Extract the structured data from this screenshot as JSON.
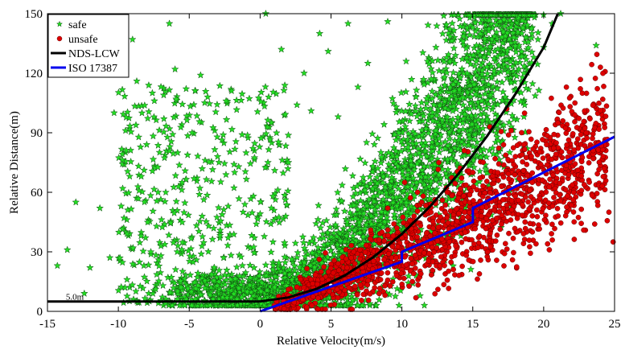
{
  "chart_data": {
    "type": "scatter",
    "title": "",
    "xlabel": "Relative Velocity(m/s)",
    "ylabel": "Relative Distance(m)",
    "xlim": [
      -15,
      25
    ],
    "ylim": [
      0,
      150
    ],
    "xticks": [
      -15,
      -10,
      -5,
      0,
      5,
      10,
      15,
      20,
      25
    ],
    "yticks": [
      0,
      30,
      60,
      90,
      120,
      150
    ],
    "grid": false,
    "legend_position": "top-left",
    "annotations": [
      {
        "text": "5.0m",
        "x": -13.7,
        "y": 5.8
      }
    ],
    "series": [
      {
        "name": "safe",
        "kind": "scatter",
        "marker": "star",
        "color": "#22dd22",
        "points_sample": [
          [
            -14.3,
            23
          ],
          [
            -13.6,
            31
          ],
          [
            -13,
            55
          ],
          [
            -12.4,
            9
          ],
          [
            -12,
            22
          ],
          [
            -11.3,
            52
          ],
          [
            -10.6,
            27
          ],
          [
            -10.3,
            100
          ],
          [
            -10.1,
            134
          ],
          [
            -9.8,
            140
          ],
          [
            -9.6,
            47
          ],
          [
            -9.2,
            68
          ],
          [
            -9,
            137
          ],
          [
            -8.7,
            116
          ],
          [
            -8.4,
            38
          ],
          [
            -8.2,
            23
          ],
          [
            -8,
            84
          ],
          [
            -7.6,
            110
          ],
          [
            -7.2,
            60
          ],
          [
            -6.4,
            145
          ],
          [
            -6,
            122
          ],
          [
            -5.5,
            65
          ],
          [
            -4.8,
            90
          ],
          [
            -4.2,
            119
          ],
          [
            -3.7,
            108
          ],
          [
            -3,
            78
          ],
          [
            -2.4,
            106
          ],
          [
            -1.8,
            70
          ],
          [
            -1.2,
            50
          ],
          [
            -0.4,
            37
          ],
          [
            0.4,
            150
          ],
          [
            0.9,
            58
          ],
          [
            1.5,
            132
          ],
          [
            2,
            75
          ],
          [
            2.6,
            104
          ],
          [
            3.1,
            120
          ],
          [
            3.6,
            101
          ],
          [
            4.2,
            140
          ],
          [
            4.8,
            131
          ],
          [
            5.5,
            98
          ],
          [
            6.2,
            145
          ],
          [
            6.9,
            113
          ],
          [
            7.6,
            125
          ],
          [
            8.3,
            72
          ],
          [
            9,
            146
          ],
          [
            9.6,
            103
          ],
          [
            10.3,
            126
          ],
          [
            11,
            108
          ],
          [
            11.7,
            92
          ],
          [
            12.4,
            133
          ],
          [
            13,
            118
          ],
          [
            13.7,
            111
          ],
          [
            14.4,
            84
          ],
          [
            15,
            143
          ],
          [
            15.8,
            128
          ],
          [
            16.5,
            121
          ],
          [
            17.2,
            147
          ],
          [
            17.9,
            138
          ],
          [
            18.6,
            120
          ],
          [
            19.3,
            128
          ],
          [
            20,
            133
          ],
          [
            20.6,
            145
          ],
          [
            21.2,
            150
          ],
          [
            23.7,
            134
          ]
        ]
      },
      {
        "name": "unsafe",
        "kind": "scatter",
        "marker": "circle",
        "color": "#dd0000",
        "points_sample": [
          [
            1,
            3
          ],
          [
            2,
            8
          ],
          [
            3,
            6
          ],
          [
            3.7,
            14
          ],
          [
            4.3,
            20
          ],
          [
            4.9,
            10
          ],
          [
            5.5,
            24
          ],
          [
            6,
            16
          ],
          [
            6.6,
            30
          ],
          [
            7.2,
            22
          ],
          [
            7.8,
            41
          ],
          [
            8.4,
            36
          ],
          [
            9,
            52
          ],
          [
            9.6,
            27
          ],
          [
            10.2,
            65
          ],
          [
            10.8,
            44
          ],
          [
            11.4,
            55
          ],
          [
            12,
            38
          ],
          [
            12.6,
            75
          ],
          [
            13.2,
            60
          ],
          [
            13.8,
            33
          ],
          [
            14.4,
            81
          ],
          [
            15,
            70
          ],
          [
            15.6,
            48
          ],
          [
            16.2,
            93
          ],
          [
            16.8,
            66
          ],
          [
            17.4,
            102
          ],
          [
            18,
            58
          ],
          [
            18.6,
            84
          ],
          [
            19.2,
            40
          ],
          [
            19.8,
            74
          ],
          [
            20.4,
            31
          ],
          [
            21,
            95
          ],
          [
            21.6,
            113
          ],
          [
            22.2,
            105
          ],
          [
            23,
            90
          ],
          [
            23.6,
            44
          ],
          [
            24.2,
            78
          ],
          [
            24.6,
            50
          ],
          [
            24.9,
            35
          ]
        ]
      },
      {
        "name": "NDS-LCW",
        "kind": "line",
        "color": "#000000",
        "x": [
          -15,
          -10,
          -5,
          0,
          2,
          4,
          6,
          8,
          10,
          12,
          14,
          16,
          18,
          20,
          21
        ],
        "y": [
          5,
          5,
          5,
          5,
          7,
          11.4,
          18.2,
          27.4,
          39,
          53,
          69.4,
          88.2,
          109.4,
          133,
          150
        ]
      },
      {
        "name": "ISO 17387",
        "kind": "line",
        "color": "#0000ee",
        "x": [
          0,
          10,
          10,
          15,
          15,
          25
        ],
        "y": [
          0,
          25,
          30,
          45,
          52,
          88
        ]
      }
    ]
  }
}
